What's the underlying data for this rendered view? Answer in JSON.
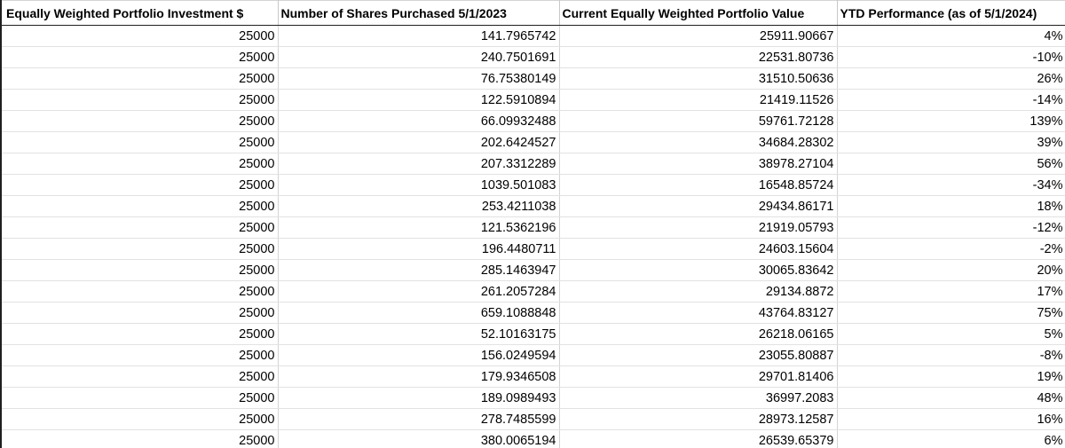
{
  "spreadsheet": {
    "headers": [
      "Equally Weighted Portfolio Investment $",
      "Number of Shares Purchased 5/1/2023",
      "Current Equally Weighted Portfolio Value",
      "YTD Performance (as of 5/1/2024)"
    ],
    "rows": [
      [
        "25000",
        "141.7965742",
        "25911.90667",
        "4%"
      ],
      [
        "25000",
        "240.7501691",
        "22531.80736",
        "-10%"
      ],
      [
        "25000",
        "76.75380149",
        "31510.50636",
        "26%"
      ],
      [
        "25000",
        "122.5910894",
        "21419.11526",
        "-14%"
      ],
      [
        "25000",
        "66.09932488",
        "59761.72128",
        "139%"
      ],
      [
        "25000",
        "202.6424527",
        "34684.28302",
        "39%"
      ],
      [
        "25000",
        "207.3312289",
        "38978.27104",
        "56%"
      ],
      [
        "25000",
        "1039.501083",
        "16548.85724",
        "-34%"
      ],
      [
        "25000",
        "253.4211038",
        "29434.86171",
        "18%"
      ],
      [
        "25000",
        "121.5362196",
        "21919.05793",
        "-12%"
      ],
      [
        "25000",
        "196.4480711",
        "24603.15604",
        "-2%"
      ],
      [
        "25000",
        "285.1463947",
        "30065.83642",
        "20%"
      ],
      [
        "25000",
        "261.2057284",
        "29134.8872",
        "17%"
      ],
      [
        "25000",
        "659.1088848",
        "43764.83127",
        "75%"
      ],
      [
        "25000",
        "52.10163175",
        "26218.06165",
        "5%"
      ],
      [
        "25000",
        "156.0249594",
        "23055.80887",
        "-8%"
      ],
      [
        "25000",
        "179.9346508",
        "29701.81406",
        "19%"
      ],
      [
        "25000",
        "189.0989493",
        "36997.2083",
        "48%"
      ],
      [
        "25000",
        "278.7485599",
        "28973.12587",
        "16%"
      ],
      [
        "25000",
        "380.0065194",
        "26539.65379",
        "6%"
      ]
    ]
  }
}
